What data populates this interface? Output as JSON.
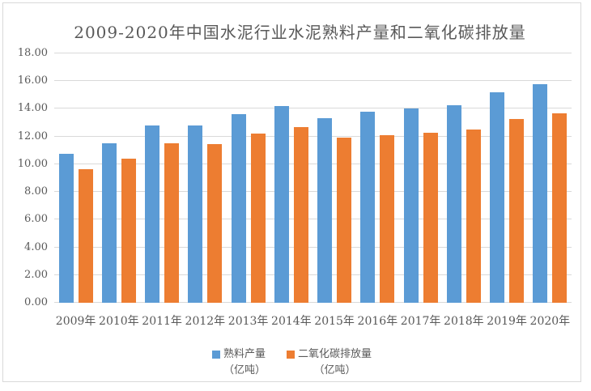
{
  "colors": {
    "series1": "#5B9BD5",
    "series2": "#ED7D31",
    "grid": "#D9D9D9",
    "border": "#D9D9D9",
    "text": "#595959"
  },
  "chart_data": {
    "type": "bar",
    "title": "2009-2020年中国水泥行业水泥熟料产量和二氧化碳排放量",
    "categories": [
      "2009年",
      "2010年",
      "2011年",
      "2012年",
      "2013年",
      "2014年",
      "2015年",
      "2016年",
      "2017年",
      "2018年",
      "2019年",
      "2020年"
    ],
    "series": [
      {
        "key": "clinker",
        "name": "熟料产量",
        "unit": "（亿吨）",
        "color": "#5B9BD5",
        "values": [
          10.75,
          11.5,
          12.8,
          12.8,
          13.6,
          14.2,
          13.3,
          13.8,
          14.0,
          14.25,
          15.2,
          15.8
        ]
      },
      {
        "key": "co2",
        "name": "二氧化碳排放量",
        "unit": "（亿吨）",
        "color": "#ED7D31",
        "values": [
          9.65,
          10.4,
          11.5,
          11.45,
          12.2,
          12.7,
          11.95,
          12.1,
          12.3,
          12.5,
          13.25,
          13.7
        ]
      }
    ],
    "xlabel": "",
    "ylabel": "",
    "ylim": [
      0,
      18
    ],
    "ytick_step": 2,
    "ytick_labels": [
      "0.00",
      "2.00",
      "4.00",
      "6.00",
      "8.00",
      "10.00",
      "12.00",
      "14.00",
      "16.00",
      "18.00"
    ],
    "grid": true,
    "legend_position": "bottom"
  }
}
